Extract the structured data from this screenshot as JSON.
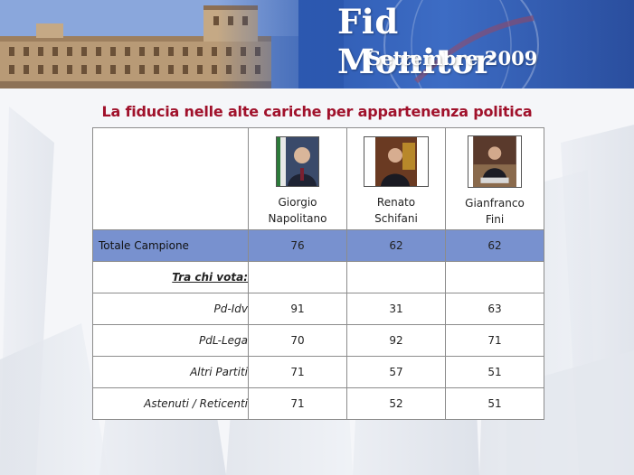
{
  "header": {
    "brand": "Fid Monitor",
    "period": "Settembre 2009"
  },
  "title": "La fiducia nelle alte cariche per appartenenza politica",
  "people": [
    {
      "first": "Giorgio",
      "last": "Napolitano",
      "photo_icon": "napolitano-portrait-photo"
    },
    {
      "first": "Renato",
      "last": "Schifani",
      "photo_icon": "schifani-portrait-photo"
    },
    {
      "first": "Gianfranco",
      "last": "Fini",
      "photo_icon": "fini-portrait-photo"
    }
  ],
  "total": {
    "label": "Totale Campione",
    "values": [
      "76",
      "62",
      "62"
    ]
  },
  "section_label": "Tra chi vota:",
  "rows": [
    {
      "label": "Pd-Idv",
      "values": [
        "91",
        "31",
        "63"
      ]
    },
    {
      "label": "PdL-Lega",
      "values": [
        "70",
        "92",
        "71"
      ]
    },
    {
      "label": "Altri Partiti",
      "values": [
        "71",
        "57",
        "51"
      ]
    },
    {
      "label": "Astenuti / Reticenti",
      "values": [
        "71",
        "52",
        "51"
      ]
    }
  ],
  "colors": {
    "title": "#a0112b",
    "total_row_bg": "#7891cf",
    "header_blue": "#2a56ad"
  }
}
